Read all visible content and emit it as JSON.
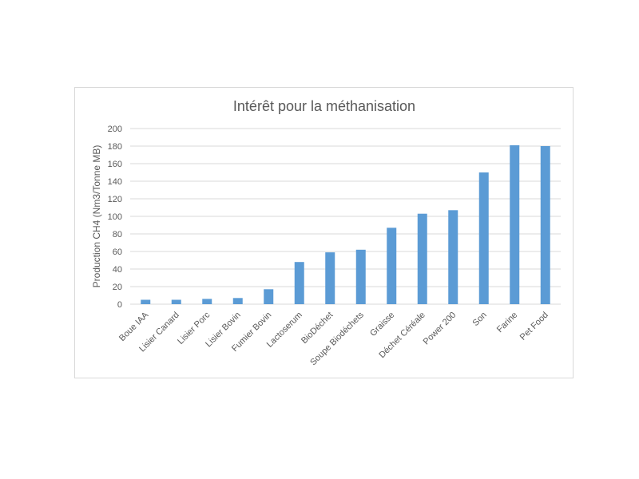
{
  "chart_data": {
    "type": "bar",
    "title": "Intérêt pour la méthanisation",
    "xlabel": "",
    "ylabel": "Production CH4 (Nm3/Tonne MB)",
    "ylim": [
      0,
      200
    ],
    "yticks": [
      0,
      20,
      40,
      60,
      80,
      100,
      120,
      140,
      160,
      180,
      200
    ],
    "grid": true,
    "legend": "none",
    "bar_color": "#5b9bd5",
    "categories": [
      "Boue IAA",
      "Lisier Canard",
      "Lisier Porc",
      "Lisier Bovin",
      "Fumier Bovin",
      "Lactoserum",
      "BioDéchet",
      "Soupe Biodéchets",
      "Graisse",
      "Déchet Céréale",
      "Power 200",
      "Son",
      "Farine",
      "Pet Food"
    ],
    "values": [
      5,
      5,
      6,
      7,
      17,
      48,
      59,
      62,
      87,
      103,
      107,
      150,
      181,
      180
    ]
  }
}
